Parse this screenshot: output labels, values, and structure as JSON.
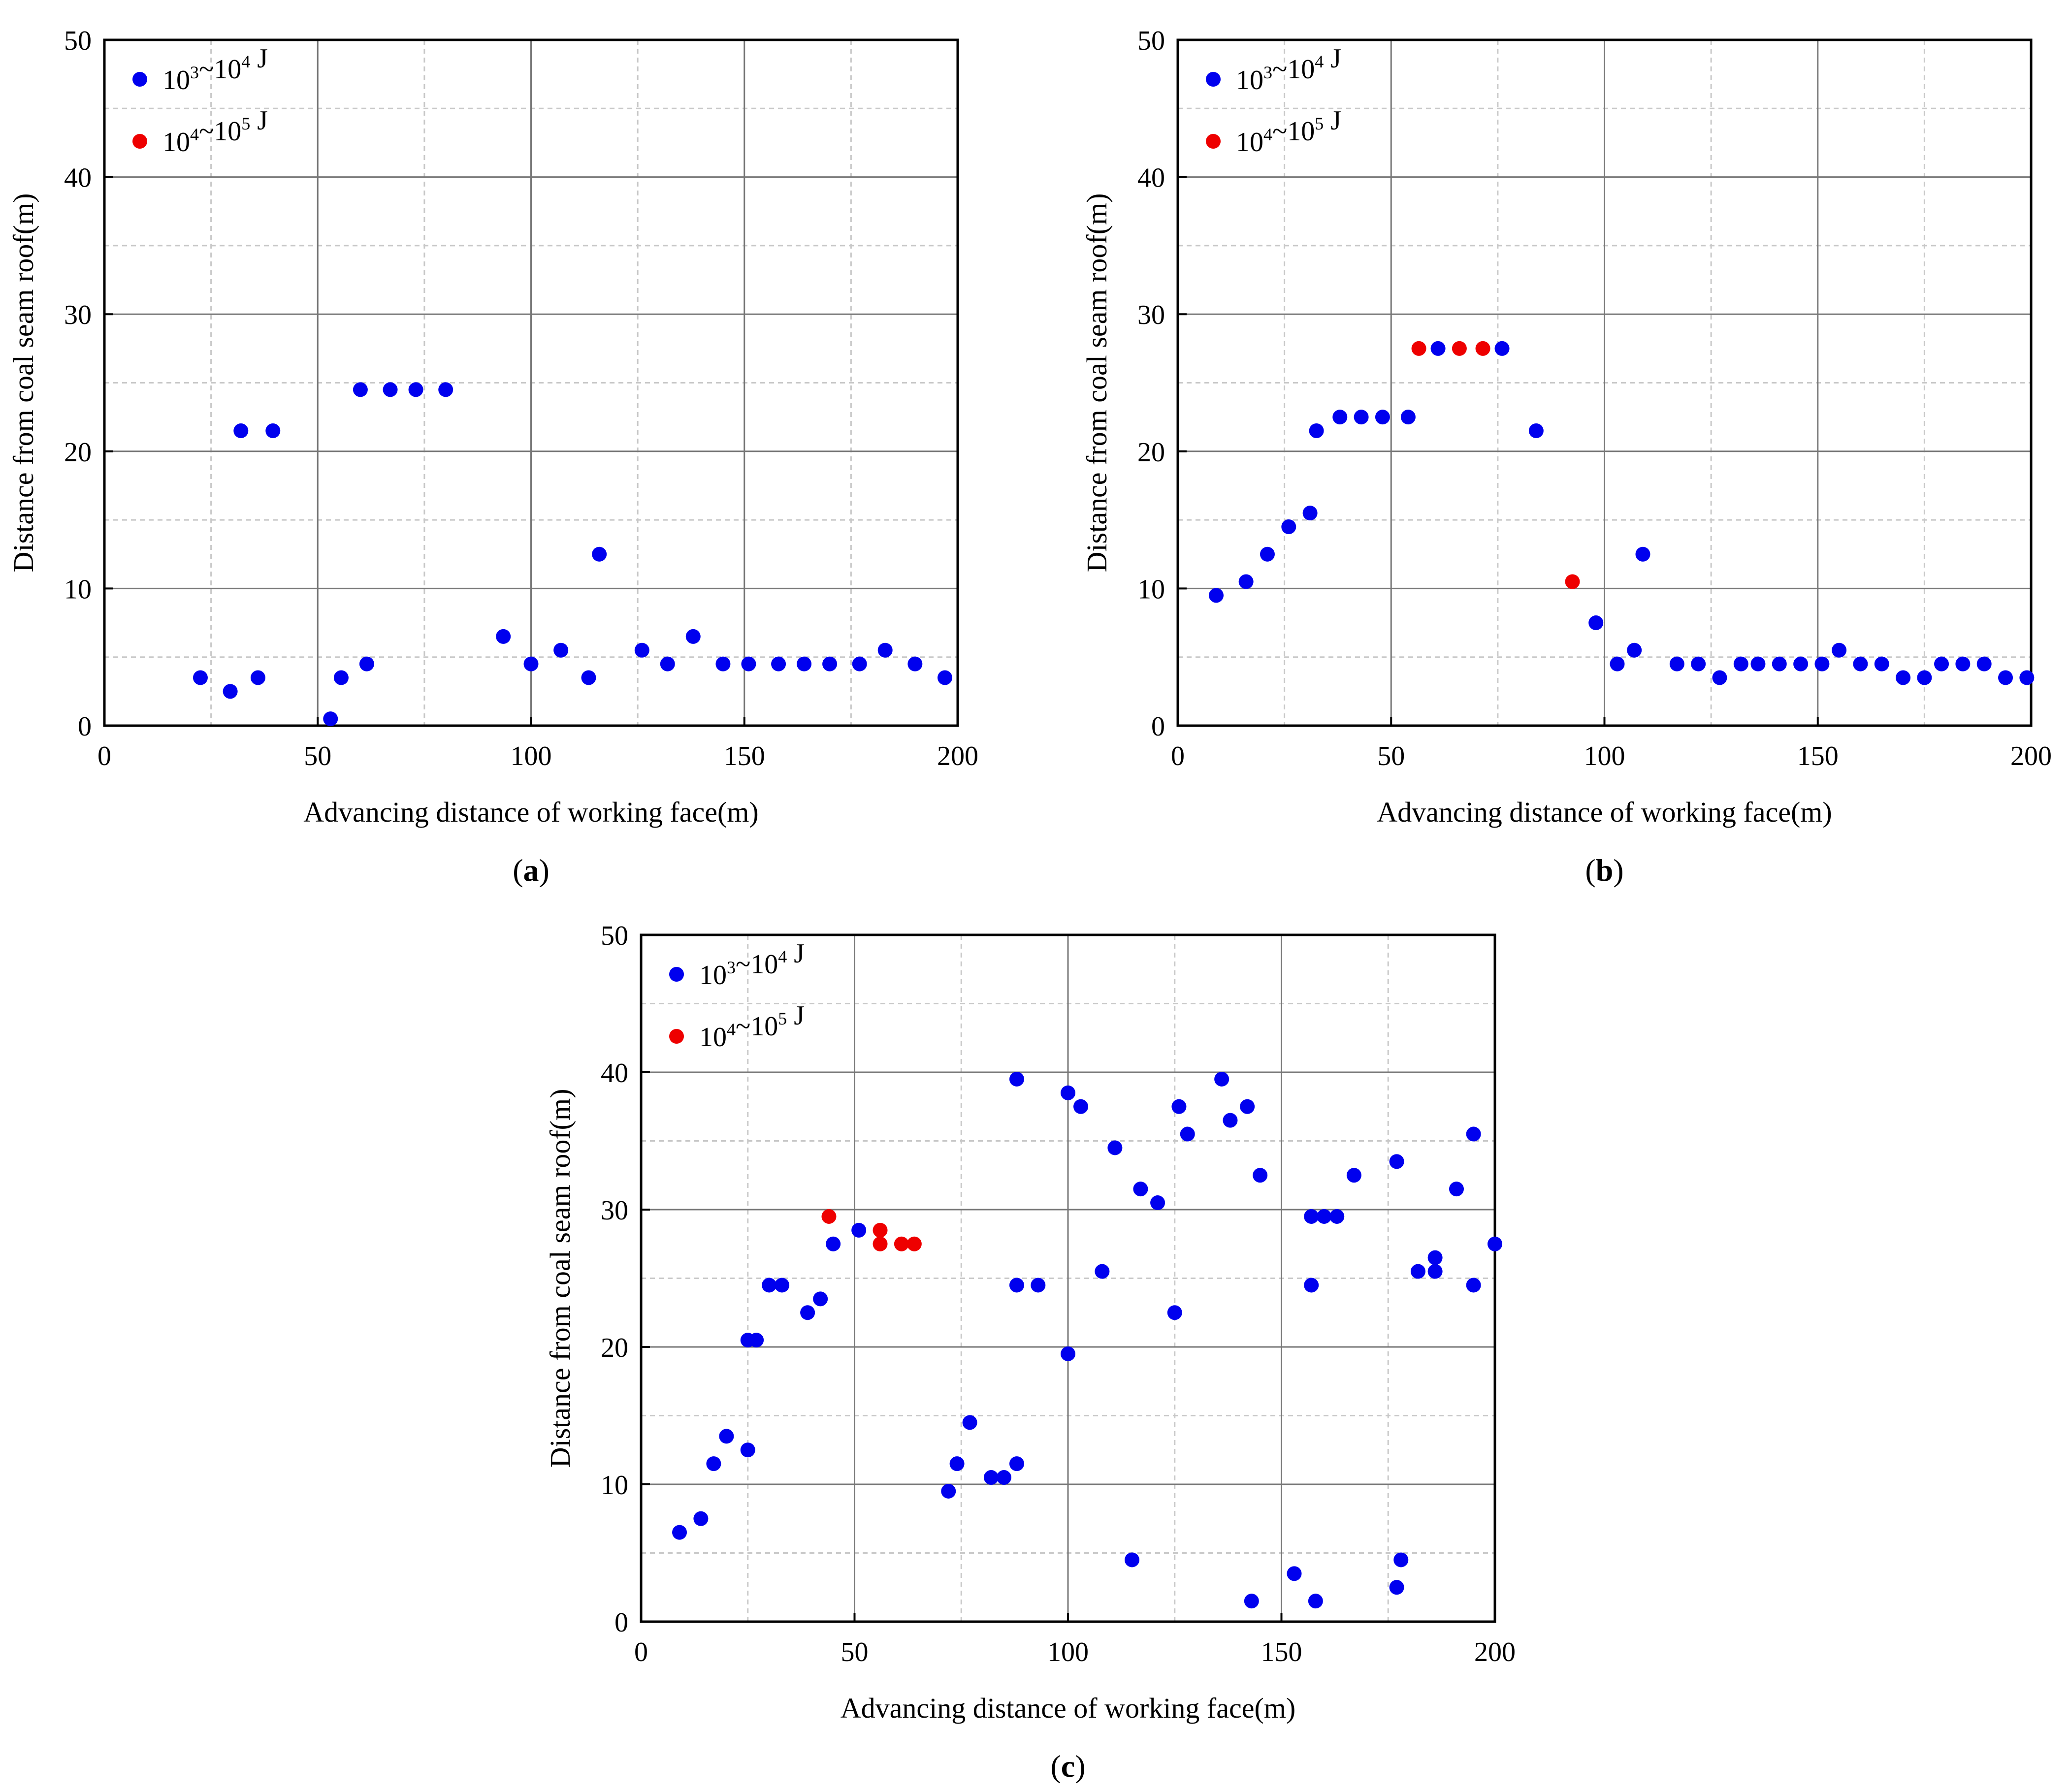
{
  "colors": {
    "low": "#0000ee",
    "high": "#ee0000",
    "major_grid": "#777777",
    "minor_grid": "#c8c8c8"
  },
  "legend": {
    "low": {
      "base1": "10",
      "exp1": "3",
      "sep": "~",
      "base2": "10",
      "exp2": "4",
      "unit": " J"
    },
    "high": {
      "base1": "10",
      "exp1": "4",
      "sep": "~",
      "base2": "10",
      "exp2": "5",
      "unit": " J"
    }
  },
  "chart_data": [
    {
      "type": "scatter",
      "panel_label": "a",
      "xlabel": "Advancing distance of working face(m)",
      "ylabel": "Distance from coal seam roof(m)",
      "xlim": [
        0,
        200
      ],
      "ylim": [
        0,
        50
      ],
      "xticks": [
        0,
        50,
        100,
        150,
        200
      ],
      "yticks": [
        0,
        10,
        20,
        30,
        40,
        50
      ],
      "grid": true,
      "legend_position": "top-left",
      "series": [
        {
          "name": "10^3~10^4 J",
          "key": "low",
          "points": [
            [
              22.5,
              3.5
            ],
            [
              29.5,
              2.5
            ],
            [
              32,
              21.5
            ],
            [
              36,
              3.5
            ],
            [
              39.5,
              21.5
            ],
            [
              53,
              0.5
            ],
            [
              55.5,
              3.5
            ],
            [
              60,
              24.5
            ],
            [
              61.5,
              4.5
            ],
            [
              67,
              24.5
            ],
            [
              73,
              24.5
            ],
            [
              80,
              24.5
            ],
            [
              93.5,
              6.5
            ],
            [
              100,
              4.5
            ],
            [
              107,
              5.5
            ],
            [
              113.5,
              3.5
            ],
            [
              116,
              12.5
            ],
            [
              126,
              5.5
            ],
            [
              132,
              4.5
            ],
            [
              138,
              6.5
            ],
            [
              145,
              4.5
            ],
            [
              151,
              4.5
            ],
            [
              158,
              4.5
            ],
            [
              164,
              4.5
            ],
            [
              170,
              4.5
            ],
            [
              177,
              4.5
            ],
            [
              183,
              5.5
            ],
            [
              190,
              4.5
            ],
            [
              197,
              3.5
            ]
          ]
        },
        {
          "name": "10^4~10^5 J",
          "key": "high",
          "points": []
        }
      ]
    },
    {
      "type": "scatter",
      "panel_label": "b",
      "xlabel": "Advancing distance of working face(m)",
      "ylabel": "Distance from coal seam roof(m)",
      "xlim": [
        0,
        200
      ],
      "ylim": [
        0,
        50
      ],
      "xticks": [
        0,
        50,
        100,
        150,
        200
      ],
      "yticks": [
        0,
        10,
        20,
        30,
        40,
        50
      ],
      "grid": true,
      "legend_position": "top-left",
      "series": [
        {
          "name": "10^3~10^4 J",
          "key": "low",
          "points": [
            [
              9,
              9.5
            ],
            [
              16,
              10.5
            ],
            [
              21,
              12.5
            ],
            [
              26,
              14.5
            ],
            [
              31,
              15.5
            ],
            [
              32.5,
              21.5
            ],
            [
              38,
              22.5
            ],
            [
              43,
              22.5
            ],
            [
              48,
              22.5
            ],
            [
              54,
              22.5
            ],
            [
              61,
              27.5
            ],
            [
              76,
              27.5
            ],
            [
              84,
              21.5
            ],
            [
              98,
              7.5
            ],
            [
              103,
              4.5
            ],
            [
              107,
              5.5
            ],
            [
              109,
              12.5
            ],
            [
              117,
              4.5
            ],
            [
              122,
              4.5
            ],
            [
              127,
              3.5
            ],
            [
              132,
              4.5
            ],
            [
              136,
              4.5
            ],
            [
              141,
              4.5
            ],
            [
              146,
              4.5
            ],
            [
              151,
              4.5
            ],
            [
              155,
              5.5
            ],
            [
              160,
              4.5
            ],
            [
              165,
              4.5
            ],
            [
              170,
              3.5
            ],
            [
              175,
              3.5
            ],
            [
              179,
              4.5
            ],
            [
              184,
              4.5
            ],
            [
              189,
              4.5
            ],
            [
              194,
              3.5
            ],
            [
              199,
              3.5
            ]
          ]
        },
        {
          "name": "10^4~10^5 J",
          "key": "high",
          "points": [
            [
              56.5,
              27.5
            ],
            [
              66,
              27.5
            ],
            [
              71.5,
              27.5
            ],
            [
              92.5,
              10.5
            ]
          ]
        }
      ]
    },
    {
      "type": "scatter",
      "panel_label": "c",
      "xlabel": "Advancing distance of working face(m)",
      "ylabel": "Distance from coal seam roof(m)",
      "xlim": [
        0,
        200
      ],
      "ylim": [
        0,
        50
      ],
      "xticks": [
        0,
        50,
        100,
        150,
        200
      ],
      "yticks": [
        0,
        10,
        20,
        30,
        40,
        50
      ],
      "grid": true,
      "legend_position": "top-left",
      "series": [
        {
          "name": "10^3~10^4 J",
          "key": "low",
          "points": [
            [
              9,
              6.5
            ],
            [
              14,
              7.5
            ],
            [
              17,
              11.5
            ],
            [
              20,
              13.5
            ],
            [
              25,
              12.5
            ],
            [
              25,
              20.5
            ],
            [
              27,
              20.5
            ],
            [
              30,
              24.5
            ],
            [
              33,
              24.5
            ],
            [
              39,
              22.5
            ],
            [
              42,
              23.5
            ],
            [
              45,
              27.5
            ],
            [
              51,
              28.5
            ],
            [
              72,
              9.5
            ],
            [
              74,
              11.5
            ],
            [
              77,
              14.5
            ],
            [
              82,
              10.5
            ],
            [
              85,
              10.5
            ],
            [
              88,
              11.5
            ],
            [
              88,
              24.5
            ],
            [
              88,
              39.5
            ],
            [
              93,
              24.5
            ],
            [
              100,
              19.5
            ],
            [
              100,
              38.5
            ],
            [
              103,
              37.5
            ],
            [
              108,
              25.5
            ],
            [
              111,
              34.5
            ],
            [
              115,
              4.5
            ],
            [
              117,
              31.5
            ],
            [
              121,
              30.5
            ],
            [
              125,
              22.5
            ],
            [
              126,
              37.5
            ],
            [
              128,
              35.5
            ],
            [
              136,
              39.5
            ],
            [
              138,
              36.5
            ],
            [
              142,
              37.5
            ],
            [
              143,
              1.5
            ],
            [
              145,
              32.5
            ],
            [
              153,
              3.5
            ],
            [
              157,
              29.5
            ],
            [
              157,
              24.5
            ],
            [
              158,
              1.5
            ],
            [
              160,
              29.5
            ],
            [
              163,
              29.5
            ],
            [
              167,
              32.5
            ],
            [
              177,
              2.5
            ],
            [
              177,
              33.5
            ],
            [
              178,
              4.5
            ],
            [
              182,
              25.5
            ],
            [
              186,
              26.5
            ],
            [
              186,
              25.5
            ],
            [
              191,
              31.5
            ],
            [
              195,
              24.5
            ],
            [
              195,
              35.5
            ],
            [
              200,
              27.5
            ]
          ]
        },
        {
          "name": "10^4~10^5 J",
          "key": "high",
          "points": [
            [
              44,
              29.5
            ],
            [
              56,
              28.5
            ],
            [
              56,
              27.5
            ],
            [
              61,
              27.5
            ],
            [
              64,
              27.5
            ]
          ]
        }
      ]
    }
  ]
}
